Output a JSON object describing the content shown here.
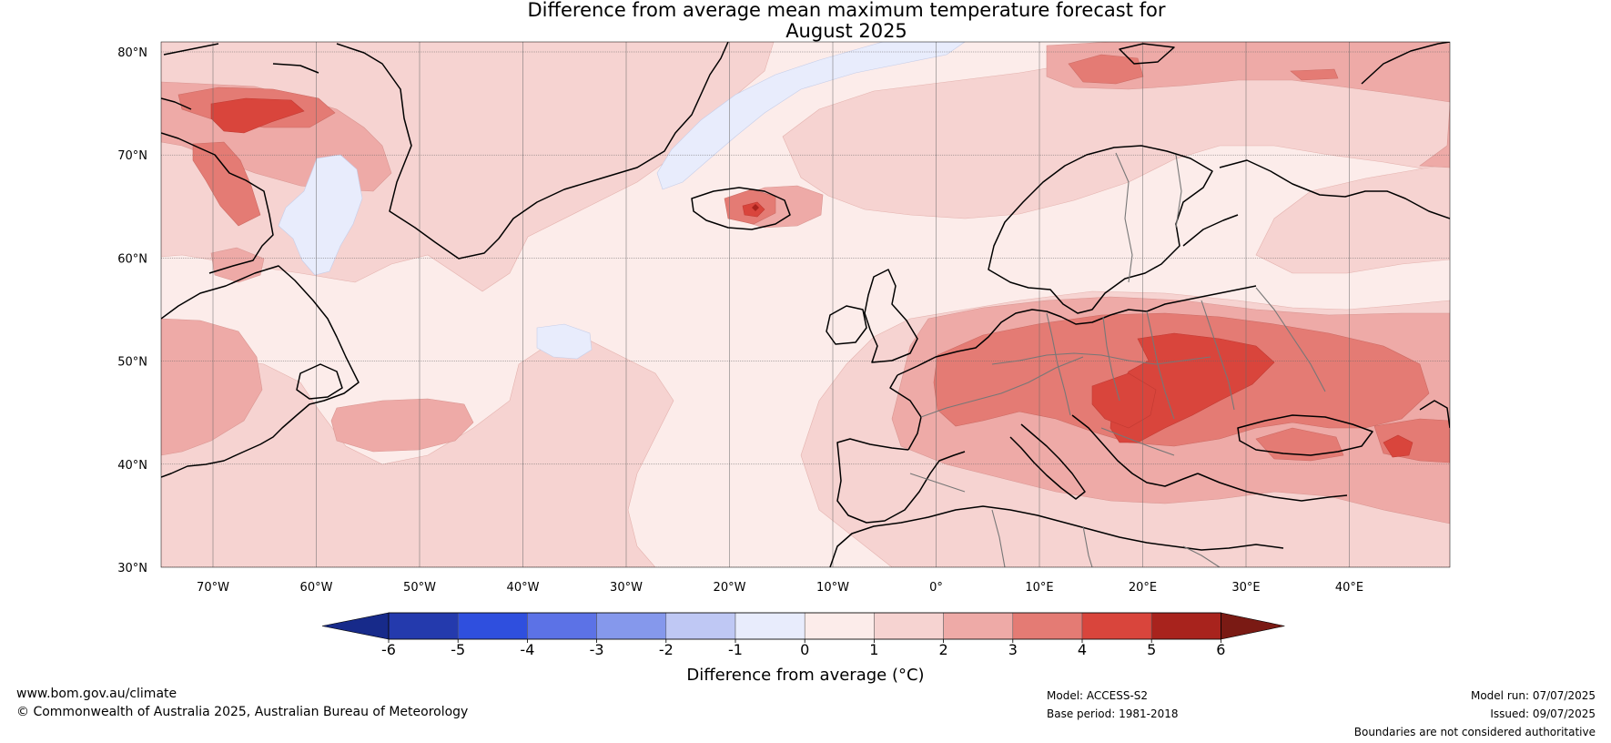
{
  "title": {
    "line1": "Difference from average mean maximum temperature forecast for",
    "line2": "August 2025"
  },
  "map": {
    "lat_labels": [
      "80°N",
      "70°N",
      "60°N",
      "50°N",
      "40°N",
      "30°N"
    ],
    "lon_labels": [
      "70°W",
      "60°W",
      "50°W",
      "40°W",
      "30°W",
      "20°W",
      "10°W",
      "0°",
      "10°E",
      "20°E",
      "30°E",
      "40°E"
    ]
  },
  "colorbar": {
    "ticks": [
      "-6",
      "-5",
      "-4",
      "-3",
      "-2",
      "-1",
      "0",
      "1",
      "2",
      "3",
      "4",
      "5",
      "6"
    ],
    "colors": [
      "#243aad",
      "#2f4fde",
      "#5c72e6",
      "#8598ec",
      "#bfc8f4",
      "#e8ecfc",
      "#fcecea",
      "#f6d3d1",
      "#eeaaa7",
      "#e47b74",
      "#d9453c",
      "#a8231d"
    ],
    "under_color": "#172a8a",
    "over_color": "#7a1a14",
    "label": "Difference from average (°C)"
  },
  "footer": {
    "website": "www.bom.gov.au/climate",
    "copyright": "© Commonwealth of Australia 2025, Australian Bureau of Meteorology",
    "model": "Model: ACCESS-S2",
    "base_period": "Base period: 1981-2018",
    "model_run": "Model run: 07/07/2025",
    "issued": "Issued: 09/07/2025",
    "disclaimer": "Boundaries are not considered authoritative"
  }
}
